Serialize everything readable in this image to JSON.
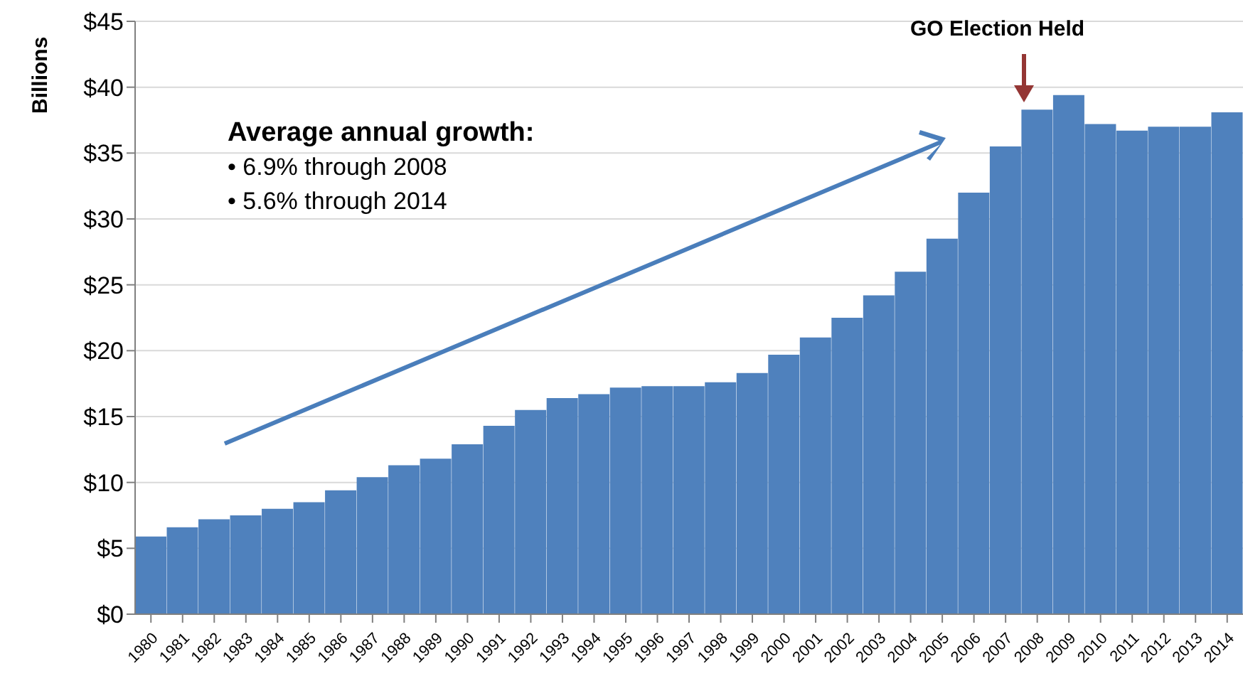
{
  "chart_data": {
    "type": "bar",
    "ylabel": "Billions",
    "categories": [
      "1980",
      "1981",
      "1982",
      "1983",
      "1984",
      "1985",
      "1986",
      "1987",
      "1988",
      "1989",
      "1990",
      "1991",
      "1992",
      "1993",
      "1994",
      "1995",
      "1996",
      "1997",
      "1998",
      "1999",
      "2000",
      "2001",
      "2002",
      "2003",
      "2004",
      "2005",
      "2006",
      "2007",
      "2008",
      "2009",
      "2010",
      "2011",
      "2012",
      "2013",
      "2014"
    ],
    "values": [
      5.9,
      6.6,
      7.2,
      7.5,
      8.0,
      8.5,
      9.4,
      10.4,
      11.3,
      11.8,
      12.9,
      14.3,
      15.5,
      16.4,
      16.7,
      17.2,
      17.3,
      17.3,
      17.6,
      18.3,
      19.7,
      21.0,
      22.5,
      24.2,
      26.0,
      28.5,
      32.0,
      35.5,
      38.3,
      39.4,
      37.2,
      36.7,
      37.0,
      37.0,
      38.1
    ],
    "color": "#4f81bd",
    "ylim": [
      0,
      45
    ],
    "yticks": [
      {
        "value": 0,
        "label": "$0"
      },
      {
        "value": 5,
        "label": "$5"
      },
      {
        "value": 10,
        "label": "$10"
      },
      {
        "value": 15,
        "label": "$15"
      },
      {
        "value": 20,
        "label": "$20"
      },
      {
        "value": 25,
        "label": "$25"
      },
      {
        "value": 30,
        "label": "$30"
      },
      {
        "value": 35,
        "label": "$35"
      },
      {
        "value": 40,
        "label": "$40"
      },
      {
        "value": 45,
        "label": "$45"
      }
    ],
    "grid": "y",
    "annotations": [
      "Average annual growth:",
      "• 6.9% through 2008",
      "• 5.6% through 2014",
      "GO Election Held"
    ]
  }
}
